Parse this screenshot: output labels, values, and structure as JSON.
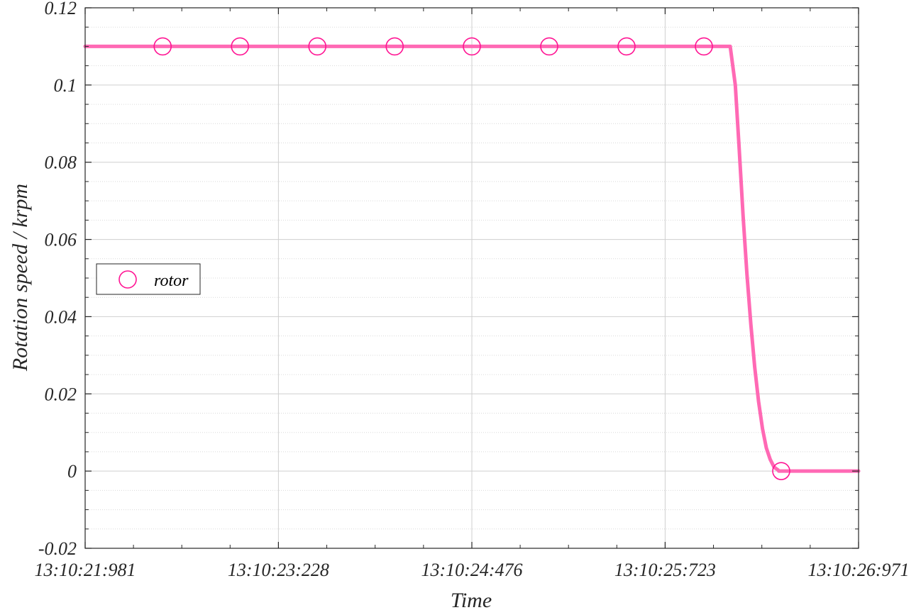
{
  "chart_data": {
    "type": "line",
    "xlabel": "Time",
    "ylabel": "Rotation speed / krpm",
    "xlim": [
      "13:10:21:981",
      "13:10:26:971"
    ],
    "ylim": [
      -0.02,
      0.12
    ],
    "x_ticks": [
      "13:10:21:981",
      "13:10:23:228",
      "13:10:24:476",
      "13:10:25:723",
      "13:10:26:971"
    ],
    "y_ticks": [
      -0.02,
      0,
      0.02,
      0.04,
      0.06,
      0.08,
      0.1,
      0.12
    ],
    "y_tick_labels": [
      "-0.02",
      "0",
      "0.02",
      "0.04",
      "0.06",
      "0.08",
      "0.1",
      "0.12"
    ],
    "grid": true,
    "minor_grid": true,
    "legend_position": "middle-left",
    "series": [
      {
        "name": "rotor",
        "color": "#ff69b4",
        "marker": "circle",
        "x": [
          "13:10:21:981",
          "13:10:26:143",
          "13:10:26:176",
          "13:10:26:200",
          "13:10:26:226",
          "13:10:26:251",
          "13:10:26:276",
          "13:10:26:301",
          "13:10:26:326",
          "13:10:26:351",
          "13:10:26:376",
          "13:10:26:401",
          "13:10:26:426",
          "13:10:26:451",
          "13:10:26:456",
          "13:10:26:971"
        ],
        "y": [
          0.11,
          0.11,
          0.1,
          0.084,
          0.066,
          0.051,
          0.038,
          0.027,
          0.018,
          0.011,
          0.006,
          0.003,
          0.001,
          0.0003,
          0,
          0
        ],
        "marker_x": [
          "13:10:22:481",
          "13:10:22:980",
          "13:10:23:479",
          "13:10:23:978",
          "13:10:24:476",
          "13:10:24:975",
          "13:10:25:474",
          "13:10:25:973",
          "13:10:26:472"
        ],
        "marker_y": [
          0.11,
          0.11,
          0.11,
          0.11,
          0.11,
          0.11,
          0.11,
          0.11,
          0
        ]
      }
    ]
  }
}
